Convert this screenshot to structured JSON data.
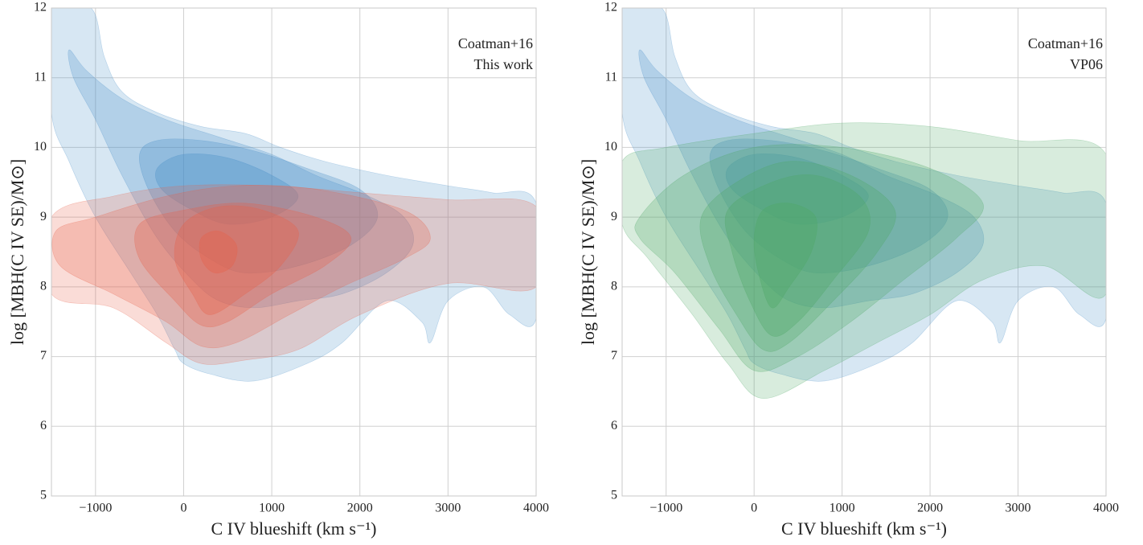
{
  "chart_data": [
    {
      "type": "contour",
      "xlabel": "C IV blueshift (km s⁻¹)",
      "ylabel": "log [MBH(C IV SE)/M⊙]",
      "xlim": [
        -1500,
        4000
      ],
      "ylim": [
        5,
        12
      ],
      "xticks": [
        {
          "value": -1000,
          "label": "−1000"
        },
        0,
        1000,
        2000,
        3000,
        4000
      ],
      "yticks": [
        5,
        6,
        7,
        8,
        9,
        10,
        11,
        12
      ],
      "grid": true,
      "series": [
        {
          "name": "Coatman+16",
          "color": "#4a90c8",
          "levels": [
            {
              "x": [
                -1500,
                -1500,
                -1050,
                -900,
                -700,
                -300,
                200,
                700,
                1100,
                1600,
                2300,
                3000,
                3500,
                4000,
                4000,
                3700,
                3400,
                3000,
                2800,
                2700,
                2300,
                1800,
                1400,
                800,
                300,
                0,
                -100,
                -300,
                -600,
                -1000,
                -1300
              ],
              "y": [
                10.5,
                12,
                12,
                11.3,
                10.8,
                10.5,
                10.3,
                10.2,
                10.0,
                9.8,
                9.6,
                9.45,
                9.35,
                9.2,
                7.55,
                7.6,
                8.0,
                7.8,
                7.2,
                7.5,
                7.8,
                7.2,
                6.9,
                6.65,
                6.75,
                6.9,
                7.1,
                7.6,
                8.2,
                9.0,
                9.8
              ]
            },
            {
              "x": [
                -1300,
                -1100,
                -700,
                -200,
                400,
                1000,
                1500,
                2100,
                2500,
                2600,
                2300,
                1800,
                1300,
                800,
                400,
                100,
                -300,
                -700,
                -1000,
                -1250
              ],
              "y": [
                11.4,
                11.1,
                10.7,
                10.4,
                10.15,
                9.9,
                9.6,
                9.3,
                9.0,
                8.6,
                8.2,
                7.9,
                7.8,
                7.7,
                7.8,
                8.1,
                8.7,
                9.6,
                10.4,
                11.0
              ]
            },
            {
              "x": [
                -500,
                -300,
                200,
                800,
                1400,
                2000,
                2200,
                1900,
                1300,
                700,
                300,
                -100,
                -400
              ],
              "y": [
                9.9,
                10.1,
                10.1,
                9.95,
                9.7,
                9.4,
                9.0,
                8.6,
                8.3,
                8.2,
                8.4,
                8.8,
                9.4
              ]
            },
            {
              "x": [
                -300,
                0,
                500,
                1000,
                1300,
                1000,
                500,
                100,
                -250
              ],
              "y": [
                9.7,
                9.9,
                9.85,
                9.6,
                9.3,
                9.0,
                8.9,
                9.1,
                9.4
              ]
            }
          ]
        },
        {
          "name": "This work",
          "color": "#e8604a",
          "levels": [
            {
              "x": [
                -1500,
                -800,
                0,
                1000,
                2000,
                3000,
                4000,
                4000,
                3000,
                2000,
                1300,
                700,
                200,
                -200,
                -800,
                -1500
              ],
              "y": [
                9.0,
                9.3,
                9.45,
                9.45,
                9.35,
                9.25,
                9.15,
                8.0,
                8.05,
                7.6,
                7.1,
                6.95,
                6.9,
                7.2,
                7.7,
                7.9
              ]
            },
            {
              "x": [
                -1450,
                -1000,
                -200,
                600,
                1500,
                2500,
                2800,
                2500,
                1800,
                1200,
                600,
                200,
                -200,
                -800,
                -1400
              ],
              "y": [
                8.8,
                9.0,
                9.3,
                9.45,
                9.4,
                9.1,
                8.7,
                8.4,
                8.0,
                7.6,
                7.2,
                7.15,
                7.5,
                7.9,
                8.3
              ]
            },
            {
              "x": [
                -500,
                0,
                700,
                1500,
                1900,
                1600,
                1000,
                500,
                200,
                -100,
                -500
              ],
              "y": [
                8.9,
                9.1,
                9.2,
                9.0,
                8.7,
                8.3,
                7.9,
                7.5,
                7.45,
                7.8,
                8.4
              ]
            },
            {
              "x": [
                0,
                400,
                900,
                1300,
                1100,
                700,
                300,
                100,
                -100
              ],
              "y": [
                8.9,
                9.15,
                9.1,
                8.8,
                8.3,
                7.9,
                7.6,
                7.9,
                8.4
              ]
            },
            {
              "x": [
                200,
                400,
                600,
                550,
                350,
                200
              ],
              "y": [
                8.7,
                8.8,
                8.6,
                8.3,
                8.2,
                8.4
              ]
            }
          ]
        }
      ],
      "legend": "upper right"
    },
    {
      "type": "contour",
      "xlabel": "C IV blueshift (km s⁻¹)",
      "ylabel": "log [MBH(C IV SE)/M⊙]",
      "xlim": [
        -1500,
        4000
      ],
      "ylim": [
        5,
        12
      ],
      "xticks": [
        {
          "value": -1000,
          "label": "−1000"
        },
        0,
        1000,
        2000,
        3000,
        4000
      ],
      "yticks": [
        5,
        6,
        7,
        8,
        9,
        10,
        11,
        12
      ],
      "grid": true,
      "series": [
        {
          "name": "Coatman+16",
          "color": "#4a90c8",
          "levels": [
            {
              "x": [
                -1500,
                -1500,
                -1050,
                -900,
                -700,
                -300,
                200,
                700,
                1100,
                1600,
                2300,
                3000,
                3500,
                4000,
                4000,
                3700,
                3400,
                3000,
                2800,
                2700,
                2300,
                1800,
                1400,
                800,
                300,
                0,
                -100,
                -300,
                -600,
                -1000,
                -1300
              ],
              "y": [
                10.5,
                12,
                12,
                11.3,
                10.8,
                10.5,
                10.3,
                10.2,
                10.0,
                9.8,
                9.6,
                9.45,
                9.35,
                9.2,
                7.55,
                7.6,
                8.0,
                7.8,
                7.2,
                7.5,
                7.8,
                7.2,
                6.9,
                6.65,
                6.75,
                6.9,
                7.1,
                7.6,
                8.2,
                9.0,
                9.8
              ]
            },
            {
              "x": [
                -1300,
                -1100,
                -700,
                -200,
                400,
                1000,
                1500,
                2100,
                2500,
                2600,
                2300,
                1800,
                1300,
                800,
                400,
                100,
                -300,
                -700,
                -1000,
                -1250
              ],
              "y": [
                11.4,
                11.1,
                10.7,
                10.4,
                10.15,
                9.9,
                9.6,
                9.3,
                9.0,
                8.6,
                8.2,
                7.9,
                7.8,
                7.7,
                7.8,
                8.1,
                8.7,
                9.6,
                10.4,
                11.0
              ]
            },
            {
              "x": [
                -500,
                -300,
                200,
                800,
                1400,
                2000,
                2200,
                1900,
                1300,
                700,
                300,
                -100,
                -400
              ],
              "y": [
                9.9,
                10.1,
                10.1,
                9.95,
                9.7,
                9.4,
                9.0,
                8.6,
                8.3,
                8.2,
                8.4,
                8.8,
                9.4
              ]
            },
            {
              "x": [
                -300,
                0,
                500,
                1000,
                1300,
                1000,
                500,
                100,
                -250
              ],
              "y": [
                9.7,
                9.9,
                9.85,
                9.6,
                9.3,
                9.0,
                8.9,
                9.1,
                9.4
              ]
            }
          ]
        },
        {
          "name": "VP06",
          "color": "#4fa866",
          "levels": [
            {
              "x": [
                -1500,
                -1000,
                0,
                1000,
                2000,
                3000,
                4000,
                4000,
                3300,
                2600,
                2000,
                1400,
                800,
                100,
                -300,
                -700,
                -1200,
                -1500
              ],
              "y": [
                9.8,
                10.0,
                10.2,
                10.35,
                10.3,
                10.1,
                9.9,
                7.9,
                8.3,
                8.1,
                7.6,
                7.2,
                6.8,
                6.4,
                6.9,
                7.6,
                8.4,
                8.9
              ]
            },
            {
              "x": [
                -1300,
                -800,
                0,
                1000,
                2000,
                2600,
                2300,
                1700,
                1100,
                500,
                0,
                -400,
                -900,
                -1300
              ],
              "y": [
                9.0,
                9.6,
                10.0,
                10.0,
                9.7,
                9.2,
                8.7,
                8.1,
                7.5,
                7.0,
                6.8,
                7.4,
                8.2,
                8.7
              ]
            },
            {
              "x": [
                -600,
                -200,
                400,
                1100,
                1600,
                1400,
                900,
                400,
                100,
                -200,
                -500
              ],
              "y": [
                9.0,
                9.5,
                9.8,
                9.6,
                9.1,
                8.5,
                7.8,
                7.2,
                7.1,
                7.6,
                8.3
              ]
            },
            {
              "x": [
                -300,
                200,
                700,
                1200,
                1300,
                900,
                500,
                200,
                -50,
                -250
              ],
              "y": [
                9.1,
                9.5,
                9.6,
                9.3,
                8.8,
                8.1,
                7.5,
                7.3,
                7.8,
                8.5
              ]
            },
            {
              "x": [
                100,
                400,
                700,
                650,
                400,
                200,
                50,
                0
              ],
              "y": [
                9.1,
                9.2,
                9.0,
                8.5,
                8.0,
                7.7,
                8.2,
                8.7
              ]
            }
          ]
        }
      ],
      "legend": "upper right"
    }
  ]
}
